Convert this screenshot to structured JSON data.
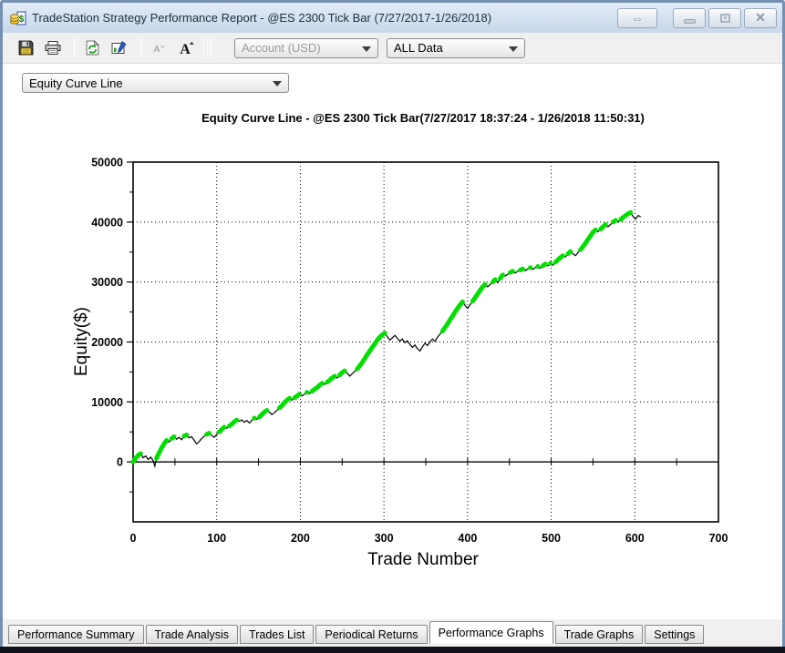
{
  "window": {
    "title": "TradeStation Strategy Performance Report - @ES 2300 Tick Bar (7/27/2017-1/26/2018)",
    "controls": {
      "dock_glyph": "⇔",
      "close_glyph": "✕"
    }
  },
  "toolbar": {
    "buttons": [
      {
        "name": "save",
        "icon": "floppy-disk-icon"
      },
      {
        "name": "print",
        "icon": "printer-icon"
      },
      {
        "name": "refresh",
        "icon": "refresh-icon"
      },
      {
        "name": "chart-properties",
        "icon": "chart-properties-icon"
      },
      {
        "name": "decrease-font",
        "icon": "decrease-font-icon",
        "disabled": true
      },
      {
        "name": "increase-font",
        "icon": "increase-font-icon"
      }
    ],
    "account_combo": {
      "value": "Account (USD)",
      "disabled": true
    },
    "range_combo": {
      "value": "ALL Data",
      "disabled": false
    }
  },
  "graph_selector": {
    "value": "Equity Curve Line"
  },
  "tabs": {
    "items": [
      {
        "label": "Performance Summary",
        "active": false
      },
      {
        "label": "Trade Analysis",
        "active": false
      },
      {
        "label": "Trades List",
        "active": false
      },
      {
        "label": "Periodical Returns",
        "active": false
      },
      {
        "label": "Performance Graphs",
        "active": true
      },
      {
        "label": "Trade Graphs",
        "active": false
      },
      {
        "label": "Settings",
        "active": false
      }
    ]
  },
  "chart_data": {
    "type": "line",
    "title": "Equity Curve Line - @ES 2300 Tick Bar(7/27/2017 18:37:24 - 1/26/2018 11:50:31)",
    "xlabel": "Trade Number",
    "ylabel": "Equity($)",
    "xlim": [
      0,
      700
    ],
    "ylim": [
      -10000,
      50000
    ],
    "xticks": [
      0,
      100,
      200,
      300,
      400,
      500,
      600,
      700
    ],
    "yticks": [
      0,
      10000,
      20000,
      30000,
      40000,
      50000
    ],
    "xminor_step": 50,
    "yminor_step": 5000,
    "grid": "dotted",
    "zero_line": true,
    "legend": "none",
    "line_color": "#000000",
    "new_high_color": "#00e000",
    "series_name": "Equity",
    "points_trade_equity_newhigh": [
      [
        0,
        0,
        1
      ],
      [
        3,
        600,
        1
      ],
      [
        6,
        1100,
        1
      ],
      [
        9,
        1400,
        1
      ],
      [
        12,
        700,
        0
      ],
      [
        15,
        1000,
        0
      ],
      [
        18,
        400,
        0
      ],
      [
        21,
        800,
        0
      ],
      [
        24,
        200,
        0
      ],
      [
        26,
        -700,
        0
      ],
      [
        28,
        600,
        1
      ],
      [
        31,
        1500,
        1
      ],
      [
        34,
        2300,
        1
      ],
      [
        37,
        3000,
        1
      ],
      [
        40,
        3600,
        1
      ],
      [
        43,
        3300,
        0
      ],
      [
        46,
        3900,
        1
      ],
      [
        49,
        4200,
        1
      ],
      [
        52,
        3800,
        0
      ],
      [
        55,
        4100,
        0
      ],
      [
        58,
        3700,
        0
      ],
      [
        61,
        4300,
        1
      ],
      [
        64,
        4500,
        1
      ],
      [
        67,
        4000,
        0
      ],
      [
        70,
        4200,
        0
      ],
      [
        73,
        3600,
        0
      ],
      [
        76,
        3000,
        0
      ],
      [
        79,
        3400,
        0
      ],
      [
        82,
        3900,
        0
      ],
      [
        85,
        4300,
        0
      ],
      [
        88,
        4600,
        1
      ],
      [
        91,
        4800,
        1
      ],
      [
        94,
        4400,
        0
      ],
      [
        97,
        4100,
        0
      ],
      [
        100,
        4600,
        0
      ],
      [
        103,
        5000,
        1
      ],
      [
        106,
        5400,
        1
      ],
      [
        109,
        5800,
        1
      ],
      [
        112,
        5600,
        0
      ],
      [
        115,
        6000,
        1
      ],
      [
        118,
        6300,
        1
      ],
      [
        121,
        6700,
        1
      ],
      [
        124,
        7000,
        1
      ],
      [
        127,
        6800,
        0
      ],
      [
        130,
        7000,
        0
      ],
      [
        133,
        6600,
        0
      ],
      [
        136,
        6900,
        0
      ],
      [
        139,
        6500,
        0
      ],
      [
        142,
        6900,
        0
      ],
      [
        145,
        7300,
        1
      ],
      [
        148,
        7100,
        0
      ],
      [
        151,
        7500,
        1
      ],
      [
        154,
        7900,
        1
      ],
      [
        157,
        8300,
        1
      ],
      [
        160,
        8600,
        1
      ],
      [
        163,
        8300,
        0
      ],
      [
        166,
        7900,
        0
      ],
      [
        169,
        8200,
        0
      ],
      [
        172,
        8600,
        0
      ],
      [
        175,
        9000,
        1
      ],
      [
        178,
        9400,
        1
      ],
      [
        181,
        9900,
        1
      ],
      [
        184,
        10300,
        1
      ],
      [
        187,
        10600,
        1
      ],
      [
        190,
        10300,
        0
      ],
      [
        193,
        10700,
        1
      ],
      [
        196,
        11000,
        1
      ],
      [
        199,
        11300,
        1
      ],
      [
        202,
        11000,
        0
      ],
      [
        205,
        11300,
        0
      ],
      [
        208,
        11600,
        1
      ],
      [
        211,
        11400,
        0
      ],
      [
        214,
        11800,
        1
      ],
      [
        217,
        12100,
        1
      ],
      [
        220,
        12400,
        1
      ],
      [
        223,
        12800,
        1
      ],
      [
        226,
        13100,
        1
      ],
      [
        229,
        12900,
        0
      ],
      [
        232,
        13300,
        1
      ],
      [
        235,
        13600,
        1
      ],
      [
        238,
        14000,
        1
      ],
      [
        241,
        14300,
        1
      ],
      [
        244,
        14000,
        0
      ],
      [
        247,
        14500,
        1
      ],
      [
        250,
        14900,
        1
      ],
      [
        253,
        15200,
        1
      ],
      [
        256,
        14800,
        0
      ],
      [
        259,
        14300,
        0
      ],
      [
        262,
        14700,
        0
      ],
      [
        265,
        15100,
        0
      ],
      [
        268,
        15500,
        1
      ],
      [
        271,
        16000,
        1
      ],
      [
        274,
        16600,
        1
      ],
      [
        277,
        17200,
        1
      ],
      [
        280,
        17900,
        1
      ],
      [
        283,
        18500,
        1
      ],
      [
        286,
        19100,
        1
      ],
      [
        289,
        19700,
        1
      ],
      [
        292,
        20300,
        1
      ],
      [
        295,
        20800,
        1
      ],
      [
        298,
        21200,
        1
      ],
      [
        301,
        21500,
        1
      ],
      [
        304,
        20900,
        0
      ],
      [
        307,
        20300,
        0
      ],
      [
        310,
        20700,
        0
      ],
      [
        313,
        21100,
        0
      ],
      [
        316,
        20600,
        0
      ],
      [
        319,
        20100,
        0
      ],
      [
        322,
        20500,
        0
      ],
      [
        325,
        19900,
        0
      ],
      [
        328,
        20200,
        0
      ],
      [
        331,
        19600,
        0
      ],
      [
        334,
        19100,
        0
      ],
      [
        337,
        19500,
        0
      ],
      [
        340,
        18900,
        0
      ],
      [
        343,
        18500,
        0
      ],
      [
        346,
        19200,
        0
      ],
      [
        349,
        19800,
        0
      ],
      [
        352,
        19400,
        0
      ],
      [
        355,
        20000,
        0
      ],
      [
        358,
        20500,
        0
      ],
      [
        361,
        20100,
        0
      ],
      [
        364,
        20800,
        0
      ],
      [
        367,
        21300,
        0
      ],
      [
        370,
        21800,
        1
      ],
      [
        373,
        22400,
        1
      ],
      [
        376,
        23000,
        1
      ],
      [
        379,
        23700,
        1
      ],
      [
        382,
        24300,
        1
      ],
      [
        385,
        25000,
        1
      ],
      [
        388,
        25600,
        1
      ],
      [
        391,
        26200,
        1
      ],
      [
        394,
        26700,
        1
      ],
      [
        397,
        26100,
        0
      ],
      [
        400,
        25600,
        0
      ],
      [
        403,
        26200,
        0
      ],
      [
        406,
        26800,
        1
      ],
      [
        409,
        27400,
        1
      ],
      [
        412,
        28000,
        1
      ],
      [
        415,
        28600,
        1
      ],
      [
        418,
        29200,
        1
      ],
      [
        421,
        29600,
        1
      ],
      [
        424,
        29200,
        0
      ],
      [
        427,
        29600,
        0
      ],
      [
        430,
        30000,
        1
      ],
      [
        433,
        30400,
        1
      ],
      [
        436,
        29900,
        0
      ],
      [
        439,
        30600,
        1
      ],
      [
        442,
        31200,
        1
      ],
      [
        445,
        31000,
        0
      ],
      [
        448,
        31300,
        0
      ],
      [
        451,
        31600,
        1
      ],
      [
        454,
        31800,
        1
      ],
      [
        457,
        31500,
        0
      ],
      [
        460,
        31800,
        0
      ],
      [
        463,
        32000,
        1
      ],
      [
        466,
        32200,
        1
      ],
      [
        469,
        31900,
        0
      ],
      [
        472,
        32200,
        0
      ],
      [
        475,
        32400,
        1
      ],
      [
        478,
        32100,
        0
      ],
      [
        481,
        32400,
        0
      ],
      [
        484,
        32600,
        1
      ],
      [
        487,
        32300,
        0
      ],
      [
        490,
        32700,
        1
      ],
      [
        493,
        33000,
        1
      ],
      [
        496,
        32700,
        0
      ],
      [
        499,
        33100,
        1
      ],
      [
        502,
        32800,
        0
      ],
      [
        505,
        33300,
        1
      ],
      [
        508,
        33700,
        1
      ],
      [
        511,
        34100,
        1
      ],
      [
        514,
        34400,
        1
      ],
      [
        517,
        34200,
        0
      ],
      [
        520,
        34700,
        1
      ],
      [
        523,
        35100,
        1
      ],
      [
        526,
        34700,
        0
      ],
      [
        529,
        34400,
        0
      ],
      [
        532,
        34900,
        0
      ],
      [
        535,
        35400,
        1
      ],
      [
        538,
        35900,
        1
      ],
      [
        541,
        36500,
        1
      ],
      [
        544,
        37100,
        1
      ],
      [
        547,
        37700,
        1
      ],
      [
        550,
        38300,
        1
      ],
      [
        553,
        38700,
        1
      ],
      [
        556,
        38400,
        0
      ],
      [
        559,
        38800,
        1
      ],
      [
        562,
        39200,
        1
      ],
      [
        565,
        39600,
        1
      ],
      [
        568,
        39200,
        0
      ],
      [
        571,
        39600,
        0
      ],
      [
        574,
        40000,
        1
      ],
      [
        577,
        40300,
        1
      ],
      [
        580,
        40000,
        0
      ],
      [
        583,
        40400,
        1
      ],
      [
        586,
        40800,
        1
      ],
      [
        589,
        41100,
        1
      ],
      [
        592,
        41400,
        1
      ],
      [
        595,
        41600,
        1
      ],
      [
        598,
        40900,
        0
      ],
      [
        601,
        40500,
        0
      ],
      [
        604,
        41100,
        0
      ],
      [
        607,
        40900,
        0
      ]
    ]
  }
}
